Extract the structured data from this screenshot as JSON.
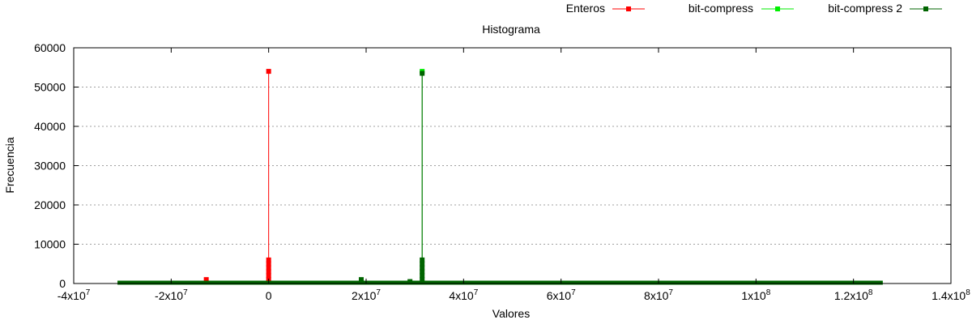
{
  "chart_data": {
    "type": "line",
    "title": "Histograma",
    "xlabel": "Valores",
    "ylabel": "Frecuencia",
    "xlim": [
      -40000000,
      140000000
    ],
    "ylim": [
      0,
      60000
    ],
    "grid": "horizontal-dashed",
    "legend_placement": "top-right-outside",
    "x_ticks": [
      {
        "value": -40000000,
        "label": "-4x10",
        "exp": "7"
      },
      {
        "value": -20000000,
        "label": "-2x10",
        "exp": "7"
      },
      {
        "value": 0,
        "label": "0",
        "exp": ""
      },
      {
        "value": 20000000,
        "label": "2x10",
        "exp": "7"
      },
      {
        "value": 40000000,
        "label": "4x10",
        "exp": "7"
      },
      {
        "value": 60000000,
        "label": "6x10",
        "exp": "7"
      },
      {
        "value": 80000000,
        "label": "8x10",
        "exp": "7"
      },
      {
        "value": 100000000,
        "label": "1x10",
        "exp": "8"
      },
      {
        "value": 120000000,
        "label": "1.2x10",
        "exp": "8"
      },
      {
        "value": 140000000,
        "label": "1.4x10",
        "exp": "8"
      }
    ],
    "y_ticks": [
      {
        "value": 0,
        "label": "0"
      },
      {
        "value": 10000,
        "label": "10000"
      },
      {
        "value": 20000,
        "label": "20000"
      },
      {
        "value": 30000,
        "label": "30000"
      },
      {
        "value": 40000,
        "label": "40000"
      },
      {
        "value": 50000,
        "label": "50000"
      },
      {
        "value": 60000,
        "label": "60000"
      }
    ],
    "series": [
      {
        "name": "Enteros",
        "color": "#ff0000",
        "baseline_range": [
          -31000000,
          1000000
        ],
        "points": [
          [
            -12800000,
            1000
          ],
          [
            0,
            54000
          ],
          [
            0,
            6000
          ],
          [
            0,
            5000
          ],
          [
            0,
            4000
          ],
          [
            0,
            3000
          ],
          [
            0,
            2000
          ],
          [
            0,
            1000
          ]
        ]
      },
      {
        "name": "bit-compress",
        "color": "#00ee00",
        "baseline_range": [
          -31000000,
          126000000
        ],
        "points": [
          [
            31500000,
            54000
          ]
        ]
      },
      {
        "name": "bit-compress 2",
        "color": "#006400",
        "baseline_range": [
          -31000000,
          126000000
        ],
        "points": [
          [
            19000000,
            1000
          ],
          [
            29000000,
            500
          ],
          [
            31500000,
            53500
          ],
          [
            31500000,
            6000
          ],
          [
            31500000,
            5000
          ],
          [
            31500000,
            4000
          ],
          [
            31500000,
            3000
          ],
          [
            31500000,
            2000
          ],
          [
            31500000,
            1000
          ]
        ]
      }
    ]
  }
}
